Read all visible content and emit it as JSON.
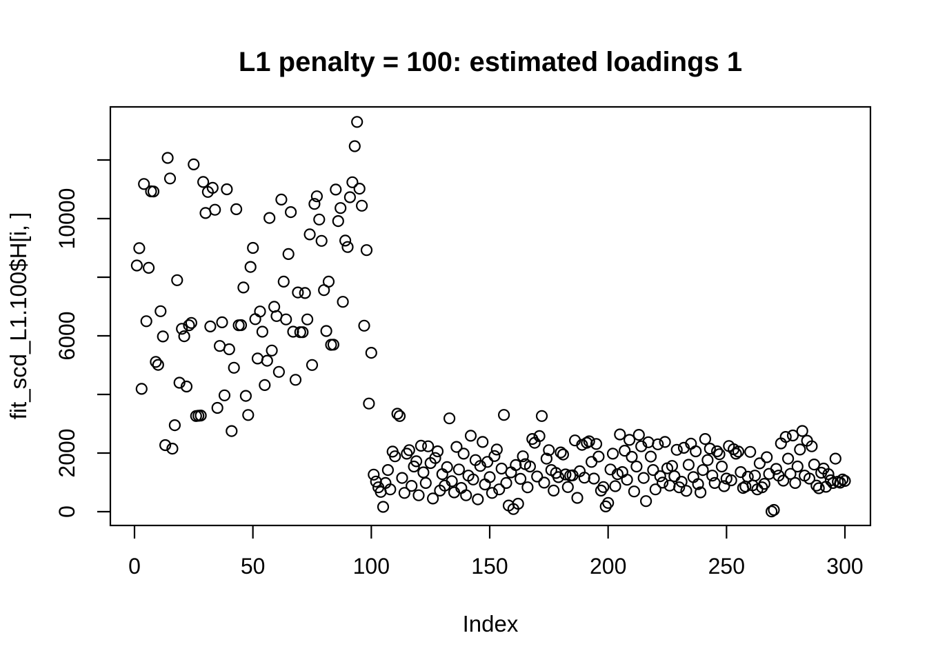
{
  "colors": {
    "background": "#ffffff",
    "foreground": "#000000"
  },
  "chart_data": {
    "type": "scatter",
    "title": "L1 penalty = 100: estimated loadings 1",
    "xlabel": "Index",
    "ylabel": "fit_scd_L1.100$H[i, ]",
    "marker": "open-circle",
    "grid": false,
    "legend": "none",
    "n": 300,
    "x_rule": "index 1..300",
    "xlim": [
      -11,
      312
    ],
    "ylim": [
      -500,
      13800
    ],
    "x_ticks": [
      0,
      50,
      100,
      150,
      200,
      250,
      300
    ],
    "x_tick_labels": [
      "0",
      "50",
      "100",
      "150",
      "200",
      "250",
      "300"
    ],
    "y_ticks": [
      0,
      2000,
      4000,
      6000,
      8000,
      10000,
      12000
    ],
    "y_tick_labels": [
      "0",
      "2000",
      "",
      "6000",
      "",
      "10000",
      ""
    ],
    "y": [
      8400,
      8990,
      4190,
      11180,
      6500,
      8320,
      10930,
      10925,
      5110,
      5010,
      6840,
      5980,
      2270,
      12070,
      11370,
      2150,
      2950,
      7900,
      4400,
      6240,
      5985,
      4270,
      6360,
      6440,
      11850,
      3264,
      3272,
      3280,
      11250,
      10190,
      10910,
      6320,
      11050,
      10300,
      3540,
      5655,
      6460,
      3970,
      11000,
      5540,
      2750,
      4910,
      10320,
      6360,
      6365,
      7650,
      3950,
      3300,
      8350,
      9000,
      6570,
      5225,
      6830,
      6140,
      4320,
      5150,
      10020,
      5500,
      6990,
      6675,
      4770,
      10650,
      7850,
      6560,
      8790,
      10220,
      6140,
      4500,
      7480,
      6125,
      6125,
      7460,
      6560,
      9460,
      5005,
      10500,
      10760,
      9970,
      9240,
      7560,
      6165,
      7850,
      5695,
      5700,
      10990,
      9915,
      10360,
      7160,
      9250,
      9030,
      10730,
      11240,
      12470,
      13300,
      11020,
      10440,
      6345,
      8925,
      3690,
      5420,
      1263,
      1028,
      831,
      675,
      165,
      980,
      1420,
      760,
      2050,
      1890,
      3341,
      3264,
      1150,
      640,
      1980,
      2100,
      880,
      1540,
      1720,
      560,
      2250,
      1340,
      980,
      2230,
      1660,
      450,
      1830,
      2060,
      720,
      1280,
      890,
      1520,
      3184,
      1040,
      660,
      2210,
      1440,
      810,
      1980,
      560,
      1230,
      2590,
      1100,
      1760,
      420,
      1560,
      2380,
      930,
      1700,
      1180,
      640,
      1900,
      2120,
      760,
      1470,
      3302,
      980,
      210,
      1340,
      90,
      1590,
      270,
      1120,
      1890,
      1620,
      830,
      1540,
      2480,
      2350,
      1200,
      2580,
      3264,
      990,
      1810,
      2100,
      1420,
      720,
      1320,
      1180,
      2020,
      1950,
      1270,
      840,
      1230,
      1240,
      2430,
      470,
      1380,
      2280,
      1160,
      2350,
      2400,
      1700,
      1130,
      2310,
      1880,
      720,
      840,
      180,
      300,
      1440,
      1980,
      870,
      1280,
      2635,
      1350,
      2080,
      1090,
      2450,
      1870,
      690,
      1540,
      2620,
      2230,
      1150,
      360,
      2370,
      1880,
      1420,
      760,
      2300,
      1210,
      990,
      2380,
      1480,
      890,
      1560,
      1210,
      2110,
      830,
      1020,
      2180,
      710,
      1600,
      2320,
      1180,
      2060,
      940,
      660,
      1420,
      2480,
      1760,
      2150,
      1230,
      980,
      2060,
      1960,
      1540,
      870,
      1130,
      2240,
      1070,
      2130,
      1980,
      2050,
      1350,
      810,
      860,
      1190,
      2040,
      900,
      1230,
      760,
      1650,
      830,
      950,
      1860,
      1290,
      8,
      60,
      1460,
      1230,
      2330,
      1060,
      2550,
      1810,
      1290,
      2600,
      980,
      1540,
      2120,
      2753,
      1230,
      2420,
      1130,
      2230,
      1610,
      890,
      800,
      1330,
      1470,
      850,
      1280,
      1070,
      980,
      1810,
      1020,
      990,
      1100,
      1050
    ]
  }
}
